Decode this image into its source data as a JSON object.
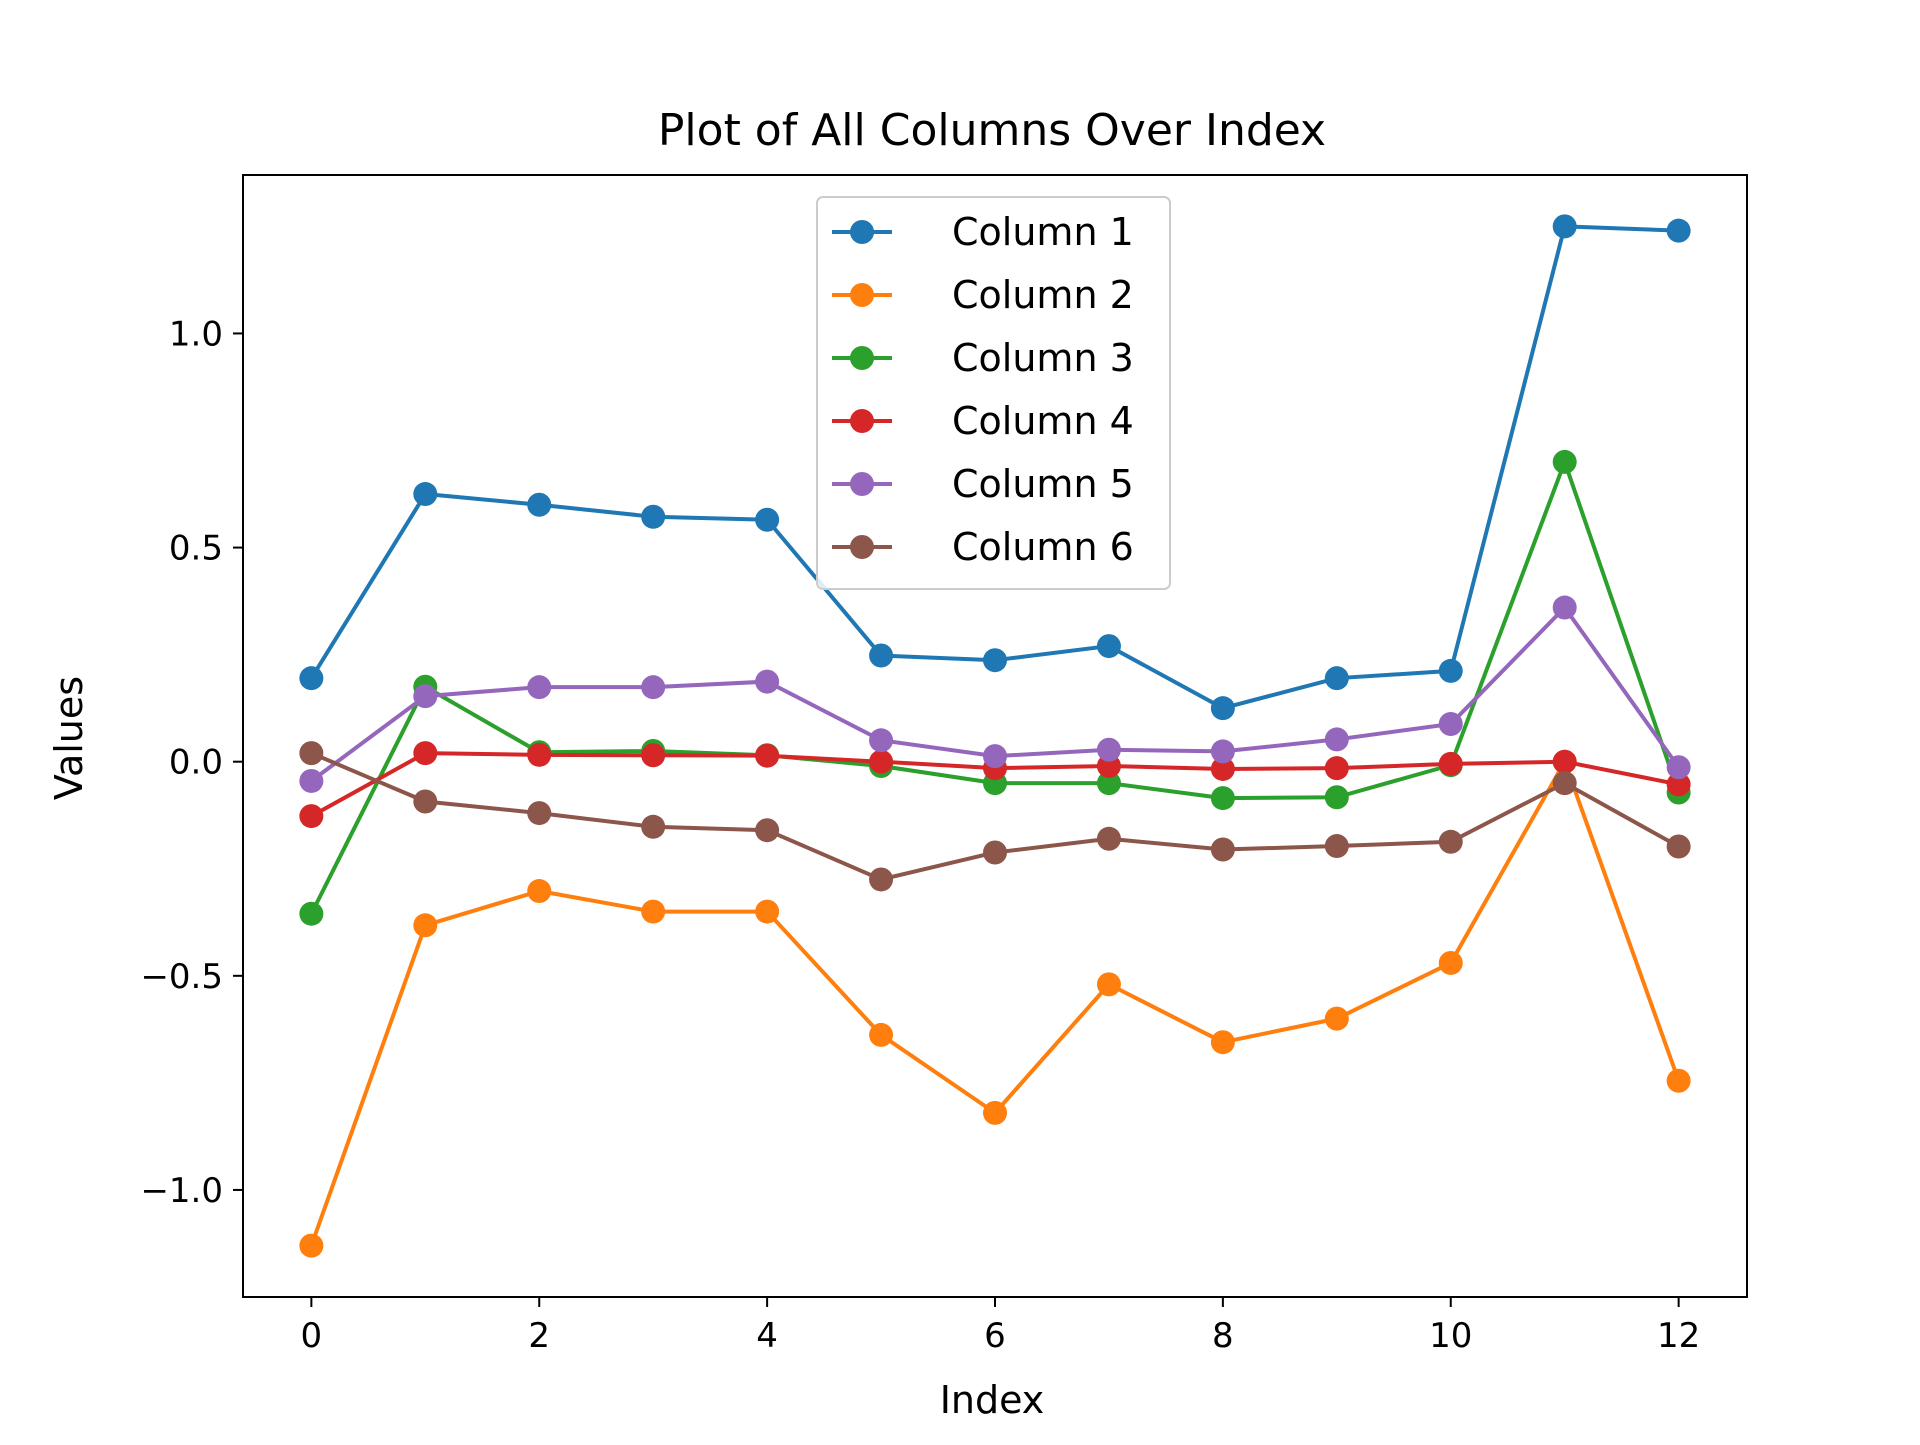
{
  "chart_data": {
    "type": "line",
    "title": "Plot of All Columns Over Index",
    "xlabel": "Index",
    "ylabel": "Values",
    "xlim": [
      -0.6,
      12.6
    ],
    "ylim": [
      -1.25,
      1.37
    ],
    "grid": false,
    "legend_position": "top-center",
    "marker": "circle",
    "x": [
      0,
      1,
      2,
      3,
      4,
      5,
      6,
      7,
      8,
      9,
      10,
      11,
      12
    ],
    "x_ticks": [
      {
        "value": 0,
        "label": "0"
      },
      {
        "value": 2,
        "label": "2"
      },
      {
        "value": 4,
        "label": "4"
      },
      {
        "value": 6,
        "label": "6"
      },
      {
        "value": 8,
        "label": "8"
      },
      {
        "value": 10,
        "label": "10"
      },
      {
        "value": 12,
        "label": "12"
      }
    ],
    "y_ticks": [
      {
        "value": -1.0,
        "label": "−1.0"
      },
      {
        "value": -0.5,
        "label": "−0.5"
      },
      {
        "value": 0.0,
        "label": "0.0"
      },
      {
        "value": 0.5,
        "label": "0.5"
      },
      {
        "value": 1.0,
        "label": "1.0"
      }
    ],
    "series": [
      {
        "name": "Column 1",
        "color": "#1f77b4",
        "values": [
          0.195,
          0.625,
          0.6,
          0.572,
          0.565,
          0.248,
          0.237,
          0.27,
          0.125,
          0.195,
          0.212,
          1.25,
          1.24
        ]
      },
      {
        "name": "Column 2",
        "color": "#ff7f0e",
        "values": [
          -1.13,
          -0.382,
          -0.302,
          -0.35,
          -0.35,
          -0.638,
          -0.82,
          -0.52,
          -0.655,
          -0.6,
          -0.47,
          0.0,
          -0.745
        ]
      },
      {
        "name": "Column 3",
        "color": "#2ca02c",
        "values": [
          -0.355,
          0.175,
          0.022,
          0.025,
          0.015,
          -0.01,
          -0.05,
          -0.05,
          -0.085,
          -0.083,
          -0.008,
          0.7,
          -0.072
        ]
      },
      {
        "name": "Column 4",
        "color": "#d62728",
        "values": [
          -0.127,
          0.02,
          0.016,
          0.015,
          0.014,
          0.0,
          -0.015,
          -0.01,
          -0.017,
          -0.015,
          -0.005,
          0.0,
          -0.053
        ]
      },
      {
        "name": "Column 5",
        "color": "#9467bd",
        "values": [
          -0.045,
          0.153,
          0.174,
          0.174,
          0.187,
          0.05,
          0.013,
          0.028,
          0.024,
          0.052,
          0.088,
          0.36,
          -0.013
        ]
      },
      {
        "name": "Column 6",
        "color": "#8c564b",
        "values": [
          0.02,
          -0.093,
          -0.12,
          -0.152,
          -0.16,
          -0.275,
          -0.212,
          -0.18,
          -0.205,
          -0.197,
          -0.187,
          -0.05,
          -0.198
        ]
      }
    ]
  }
}
